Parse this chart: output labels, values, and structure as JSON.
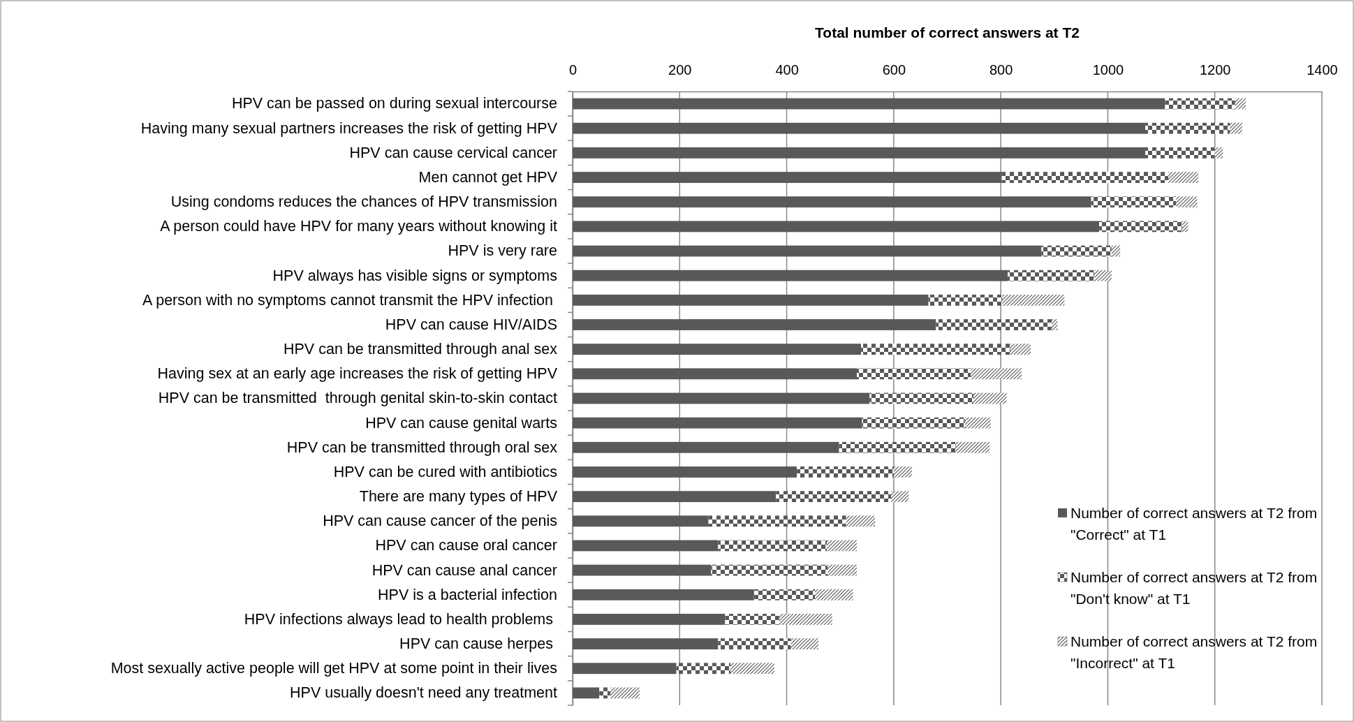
{
  "chart_data": {
    "type": "bar",
    "orientation": "horizontal",
    "stacked": true,
    "title": "Total number of correct answers at T2",
    "categories": [
      "HPV can be passed on during sexual intercourse",
      "Having many sexual partners increases the risk of getting HPV",
      "HPV can cause cervical cancer",
      "Men cannot get HPV",
      "Using condoms reduces the chances of HPV transmission",
      "A person could have HPV for many years without knowing it",
      "HPV is very rare",
      "HPV always has visible signs or symptoms",
      "A person with no symptoms cannot transmit the HPV infection ",
      "HPV can cause HIV/AIDS",
      "HPV can be transmitted through anal sex",
      "Having sex at an early age increases the risk of getting HPV",
      "HPV can be transmitted  through genital skin-to-skin contact",
      "HPV can cause genital warts",
      "HPV can be transmitted through oral sex",
      "HPV can be cured with antibiotics",
      "There are many types of HPV",
      "HPV can cause cancer of the penis",
      "HPV can cause oral cancer",
      "HPV can cause anal cancer",
      "HPV is a bacterial infection",
      "HPV infections always lead to health problems ",
      "HPV can cause herpes ",
      "Most sexually active people will get HPV at some point in their lives",
      "HPV usually doesn't need any treatment"
    ],
    "series": [
      {
        "name": "Number of correct answers at T2 from \"Correct\" at T1",
        "color": "#595959",
        "values": [
          1107,
          1070,
          1070,
          802,
          969,
          984,
          876,
          813,
          665,
          679,
          539,
          531,
          555,
          541,
          498,
          419,
          380,
          254,
          272,
          259,
          339,
          285,
          272,
          194,
          50
        ]
      },
      {
        "name": "Number of correct answers at T2 from \"Don't know\" at T1",
        "color": "#595959",
        "values": [
          131,
          158,
          130,
          311,
          159,
          155,
          131,
          162,
          138,
          216,
          279,
          213,
          194,
          192,
          218,
          181,
          215,
          257,
          203,
          218,
          114,
          101,
          136,
          101,
          21
        ]
      },
      {
        "name": "Number of correct answers at T2 from \"Incorrect\" at T1",
        "color": "#595959",
        "values": [
          20,
          23,
          15,
          56,
          39,
          11,
          16,
          32,
          116,
          11,
          38,
          95,
          62,
          48,
          63,
          34,
          33,
          54,
          56,
          54,
          71,
          99,
          51,
          82,
          54
        ]
      }
    ],
    "xlim": [
      0,
      1400
    ],
    "xticks": [
      0,
      200,
      400,
      600,
      800,
      1000,
      1200,
      1400
    ],
    "grid": "x",
    "legend": "bottom right"
  }
}
